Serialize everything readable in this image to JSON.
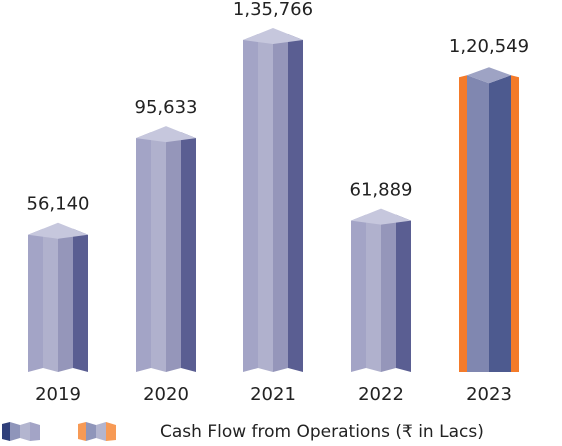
{
  "chart_data": {
    "type": "bar",
    "categories": [
      "2019",
      "2020",
      "2021",
      "2022",
      "2023"
    ],
    "series": [
      {
        "name": "Cash Flow from Operations (₹ in Lacs)",
        "values": [
          56140,
          95633,
          135766,
          61889,
          120549
        ],
        "value_labels": [
          "56,140",
          "95,633",
          "1,35,766",
          "61,889",
          "1,20,549"
        ],
        "colors": [
          "#a3a4c6",
          "#a3a4c6",
          "#a3a4c6",
          "#a3a4c6",
          "#f47b2a"
        ]
      }
    ]
  }
}
